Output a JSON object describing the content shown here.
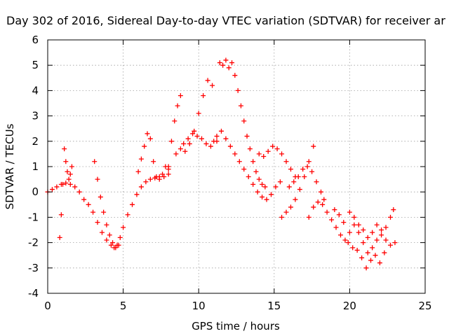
{
  "chart_data": {
    "type": "scatter",
    "title": "Day 302 of 2016, Sidereal Day-to-day VTEC variation (SDTVAR) for receiver ar",
    "xlabel": "GPS time / hours",
    "ylabel": "SDTVAR / TECUs",
    "xlim": [
      0,
      25
    ],
    "ylim": [
      -4,
      6
    ],
    "xticks": [
      "0",
      "5",
      "10",
      "15",
      "20",
      "25"
    ],
    "yticks": [
      "-4",
      "-3",
      "-2",
      "-1",
      "0",
      "1",
      "2",
      "3",
      "4",
      "5",
      "6"
    ],
    "grid": true,
    "marker": "plus",
    "color": "#ff0000",
    "series": [
      {
        "x": [
          0.0,
          0.3,
          0.6,
          0.9,
          1.2,
          1.5,
          1.8,
          2.1,
          2.4,
          2.7,
          3.0,
          3.3,
          3.6,
          3.9,
          4.2,
          4.4,
          4.6,
          4.8,
          5.0,
          5.3,
          5.6,
          5.9,
          6.2,
          6.5,
          6.8,
          7.1,
          7.4,
          7.7,
          8.0
        ],
        "y": [
          0.0,
          0.1,
          0.2,
          0.3,
          0.35,
          0.3,
          0.2,
          0.0,
          -0.3,
          -0.5,
          -0.8,
          -1.2,
          -1.6,
          -1.9,
          -2.1,
          -2.2,
          -2.1,
          -1.8,
          -1.4,
          -0.9,
          -0.5,
          -0.1,
          0.2,
          0.4,
          0.5,
          0.55,
          0.6,
          0.6,
          0.7
        ]
      },
      {
        "x": [
          0.8,
          0.9,
          1.0,
          1.1,
          1.2,
          1.3,
          1.4,
          1.5,
          1.6
        ],
        "y": [
          -1.8,
          -0.9,
          0.3,
          1.7,
          1.2,
          0.8,
          0.5,
          0.7,
          1.0
        ]
      },
      {
        "x": [
          3.1,
          3.3,
          3.5,
          3.7,
          3.9,
          4.1,
          4.3,
          4.5,
          4.7
        ],
        "y": [
          1.2,
          0.5,
          -0.2,
          -0.8,
          -1.3,
          -1.7,
          -2.0,
          -2.2,
          -2.1
        ]
      },
      {
        "x": [
          6.0,
          6.2,
          6.4,
          6.6,
          6.8,
          7.0,
          7.2,
          7.4,
          7.6,
          7.8,
          8.0
        ],
        "y": [
          0.8,
          1.3,
          1.8,
          2.3,
          2.1,
          1.2,
          0.6,
          0.5,
          0.7,
          1.0,
          0.9
        ]
      },
      {
        "x": [
          8.0,
          8.2,
          8.4,
          8.6,
          8.8,
          9.0,
          9.3,
          9.6,
          9.9,
          10.2,
          10.5,
          10.8,
          11.0
        ],
        "y": [
          1.0,
          2.0,
          2.8,
          3.4,
          3.8,
          1.9,
          2.1,
          2.3,
          2.2,
          2.1,
          1.9,
          1.8,
          2.0
        ]
      },
      {
        "x": [
          8.5,
          8.8,
          9.1,
          9.4,
          9.7,
          10.0,
          10.3,
          10.6,
          10.9,
          11.2
        ],
        "y": [
          1.5,
          1.7,
          1.6,
          1.9,
          2.4,
          3.1,
          3.8,
          4.4,
          4.2,
          2.2
        ]
      },
      {
        "x": [
          11.4,
          11.6,
          11.8,
          12.0,
          12.2,
          12.4,
          12.6,
          12.8,
          13.0,
          13.2,
          13.4,
          13.6,
          13.8,
          14.0,
          14.2,
          14.4
        ],
        "y": [
          5.1,
          5.0,
          5.2,
          4.9,
          5.1,
          4.6,
          4.0,
          3.4,
          2.8,
          2.2,
          1.7,
          1.2,
          0.8,
          0.5,
          0.3,
          0.2
        ]
      },
      {
        "x": [
          11.2,
          11.5,
          11.8,
          12.1,
          12.4,
          12.7,
          13.0,
          13.3,
          13.6,
          13.9,
          14.2,
          14.5,
          14.8,
          15.1,
          15.4
        ],
        "y": [
          2.0,
          2.4,
          2.1,
          1.8,
          1.5,
          1.2,
          0.9,
          0.6,
          0.3,
          0.0,
          -0.2,
          -0.3,
          -0.1,
          0.2,
          0.4
        ]
      },
      {
        "x": [
          14.0,
          14.3,
          14.6,
          14.9,
          15.2,
          15.5,
          15.8,
          16.1,
          16.4
        ],
        "y": [
          1.5,
          1.4,
          1.6,
          1.8,
          1.7,
          1.5,
          1.2,
          0.9,
          0.6
        ]
      },
      {
        "x": [
          15.5,
          15.8,
          16.1,
          16.4,
          16.7,
          17.0,
          17.3,
          17.6
        ],
        "y": [
          -1.0,
          -0.8,
          -0.6,
          -0.3,
          0.1,
          0.6,
          1.2,
          1.8
        ]
      },
      {
        "x": [
          16.0,
          16.3,
          16.6,
          16.9,
          17.2,
          17.5,
          17.8,
          18.1,
          18.3
        ],
        "y": [
          0.2,
          0.4,
          0.6,
          0.9,
          1.0,
          0.8,
          0.4,
          0.0,
          -0.3
        ]
      },
      {
        "x": [
          17.3,
          17.6,
          17.9,
          18.2,
          18.5,
          18.8,
          19.1,
          19.4,
          19.7,
          20.0,
          20.3,
          20.6,
          20.9,
          21.2,
          21.5,
          21.8,
          22.1,
          22.4,
          22.7,
          23.0
        ],
        "y": [
          -1.0,
          -0.6,
          -0.4,
          -0.5,
          -0.8,
          -1.1,
          -1.4,
          -1.7,
          -1.9,
          -1.6,
          -1.3,
          -1.6,
          -2.0,
          -2.4,
          -2.2,
          -1.9,
          -1.7,
          -1.9,
          -2.1,
          -2.0
        ]
      },
      {
        "x": [
          19.0,
          19.3,
          19.6,
          19.9,
          20.2,
          20.5,
          20.8,
          21.1,
          21.4,
          21.7,
          22.0,
          22.3
        ],
        "y": [
          -0.7,
          -0.9,
          -1.2,
          -2.0,
          -2.2,
          -2.3,
          -2.6,
          -3.0,
          -2.7,
          -2.5,
          -2.8,
          -2.4
        ]
      },
      {
        "x": [
          20.0,
          20.3,
          20.6,
          20.9,
          21.2,
          21.5,
          21.8,
          22.1,
          22.4,
          22.7,
          22.9
        ],
        "y": [
          -0.8,
          -1.0,
          -1.3,
          -1.5,
          -1.8,
          -1.6,
          -1.3,
          -1.5,
          -1.4,
          -1.0,
          -0.7
        ]
      }
    ]
  }
}
